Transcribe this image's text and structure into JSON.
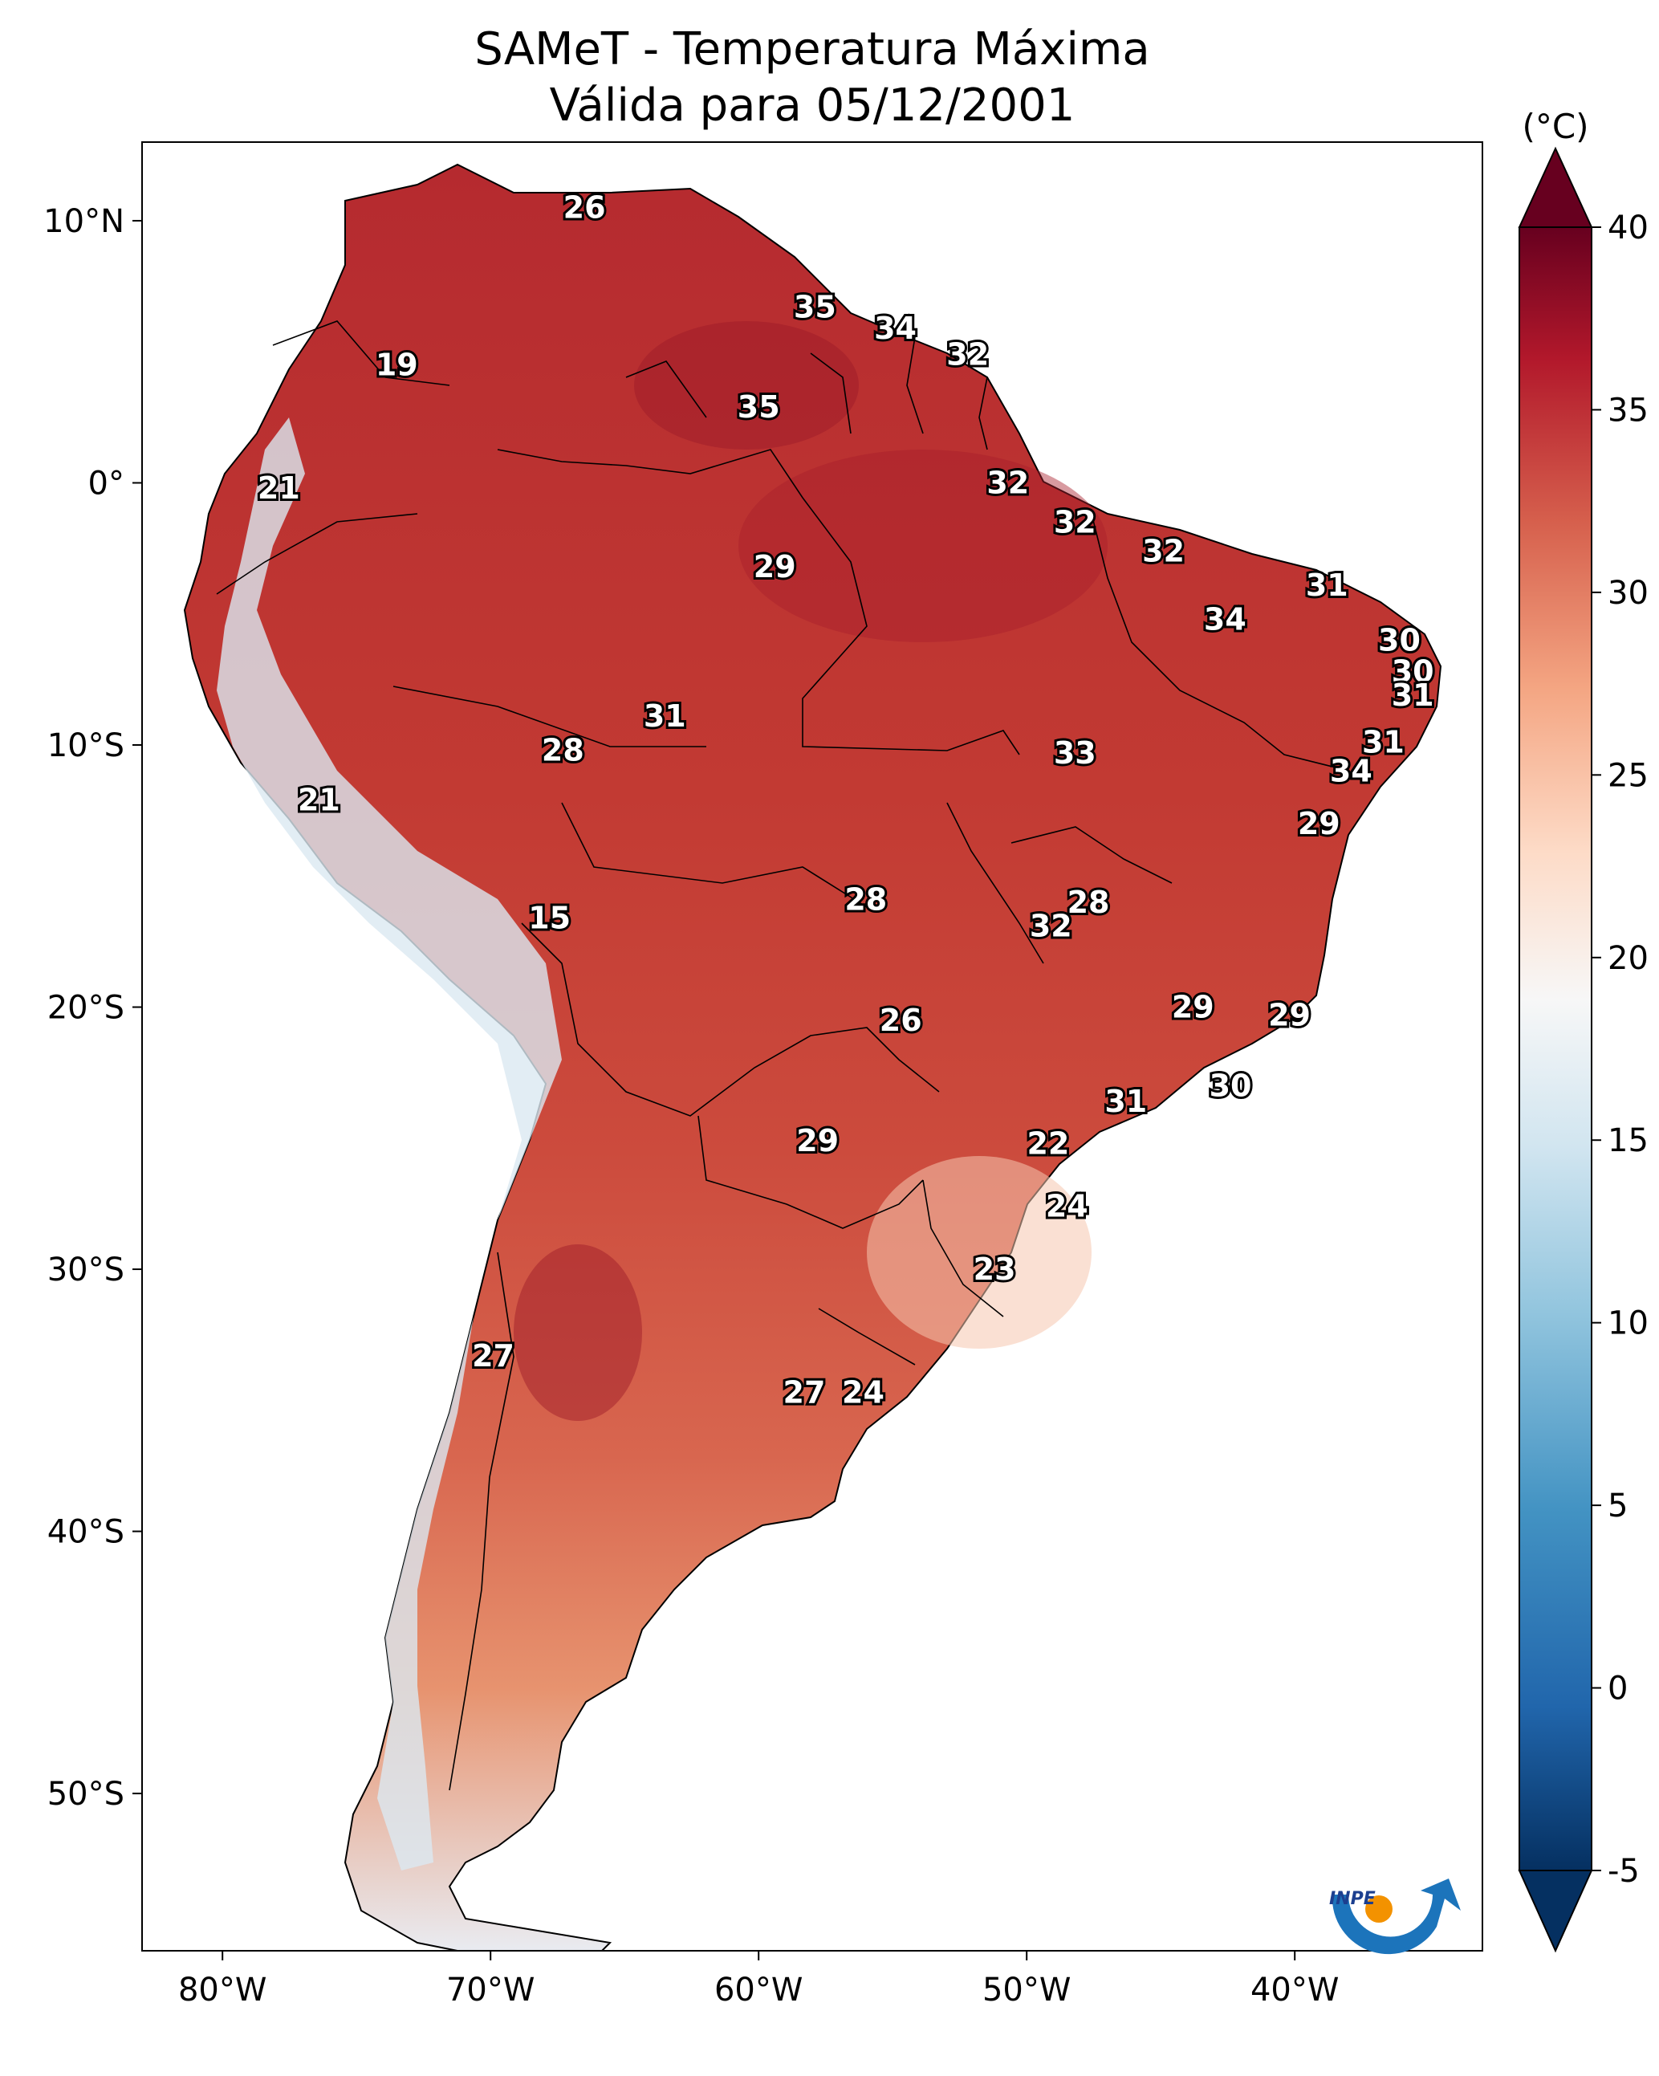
{
  "title": {
    "line1": "SAMeT - Temperatura Máxima",
    "line2": "Válida para 05/12/2001"
  },
  "axes": {
    "lon_ticks": [
      {
        "value": -80,
        "label": "80°W"
      },
      {
        "value": -70,
        "label": "70°W"
      },
      {
        "value": -60,
        "label": "60°W"
      },
      {
        "value": -50,
        "label": "50°W"
      },
      {
        "value": -40,
        "label": "40°W"
      }
    ],
    "lat_ticks": [
      {
        "value": 10,
        "label": "10°N"
      },
      {
        "value": 0,
        "label": "0°"
      },
      {
        "value": -10,
        "label": "10°S"
      },
      {
        "value": -20,
        "label": "20°S"
      },
      {
        "value": -30,
        "label": "30°S"
      },
      {
        "value": -40,
        "label": "40°S"
      },
      {
        "value": -50,
        "label": "50°S"
      }
    ],
    "lon_range": [
      -83,
      -33
    ],
    "lat_range": [
      -56,
      13
    ]
  },
  "colorbar": {
    "unit": "(°C)",
    "min": -5,
    "max": 40,
    "ticks": [
      40,
      35,
      30,
      25,
      20,
      15,
      10,
      5,
      0,
      -5
    ],
    "colormap": "RdBu_r"
  },
  "contour_labels": [
    {
      "value": "26",
      "lon": -66.5,
      "lat": 10.5
    },
    {
      "value": "35",
      "lon": -57.9,
      "lat": 6.7
    },
    {
      "value": "34",
      "lon": -54.9,
      "lat": 5.9
    },
    {
      "value": "32",
      "lon": -52.2,
      "lat": 4.9
    },
    {
      "value": "19",
      "lon": -73.5,
      "lat": 4.5
    },
    {
      "value": "35",
      "lon": -60.0,
      "lat": 2.9
    },
    {
      "value": "21",
      "lon": -77.9,
      "lat": -0.2
    },
    {
      "value": "32",
      "lon": -50.7,
      "lat": 0.0
    },
    {
      "value": "32",
      "lon": -48.2,
      "lat": -1.5
    },
    {
      "value": "32",
      "lon": -44.9,
      "lat": -2.6
    },
    {
      "value": "29",
      "lon": -59.4,
      "lat": -3.2
    },
    {
      "value": "31",
      "lon": -38.8,
      "lat": -3.9
    },
    {
      "value": "34",
      "lon": -42.6,
      "lat": -5.2
    },
    {
      "value": "30",
      "lon": -36.1,
      "lat": -6.0
    },
    {
      "value": "30",
      "lon": -35.6,
      "lat": -7.2
    },
    {
      "value": "31",
      "lon": -35.6,
      "lat": -8.1
    },
    {
      "value": "31",
      "lon": -63.5,
      "lat": -8.9
    },
    {
      "value": "31",
      "lon": -36.7,
      "lat": -9.9
    },
    {
      "value": "28",
      "lon": -67.3,
      "lat": -10.2
    },
    {
      "value": "33",
      "lon": -48.2,
      "lat": -10.3
    },
    {
      "value": "34",
      "lon": -37.9,
      "lat": -11.0
    },
    {
      "value": "21",
      "lon": -76.4,
      "lat": -12.1
    },
    {
      "value": "29",
      "lon": -39.1,
      "lat": -13.0
    },
    {
      "value": "28",
      "lon": -56.0,
      "lat": -15.9
    },
    {
      "value": "28",
      "lon": -47.7,
      "lat": -16.0
    },
    {
      "value": "32",
      "lon": -49.1,
      "lat": -16.9
    },
    {
      "value": "15",
      "lon": -67.8,
      "lat": -16.6
    },
    {
      "value": "29",
      "lon": -43.8,
      "lat": -20.0
    },
    {
      "value": "29",
      "lon": -40.2,
      "lat": -20.3
    },
    {
      "value": "26",
      "lon": -54.7,
      "lat": -20.5
    },
    {
      "value": "30",
      "lon": -42.4,
      "lat": -23.0
    },
    {
      "value": "31",
      "lon": -46.3,
      "lat": -23.6
    },
    {
      "value": "29",
      "lon": -57.8,
      "lat": -25.1
    },
    {
      "value": "22",
      "lon": -49.2,
      "lat": -25.2
    },
    {
      "value": "24",
      "lon": -48.5,
      "lat": -27.6
    },
    {
      "value": "23",
      "lon": -51.2,
      "lat": -30.0
    },
    {
      "value": "27",
      "lon": -69.9,
      "lat": -33.3
    },
    {
      "value": "27",
      "lon": -58.3,
      "lat": -34.7
    },
    {
      "value": "24",
      "lon": -56.1,
      "lat": -34.7
    }
  ],
  "logo": {
    "text": "INPE"
  }
}
